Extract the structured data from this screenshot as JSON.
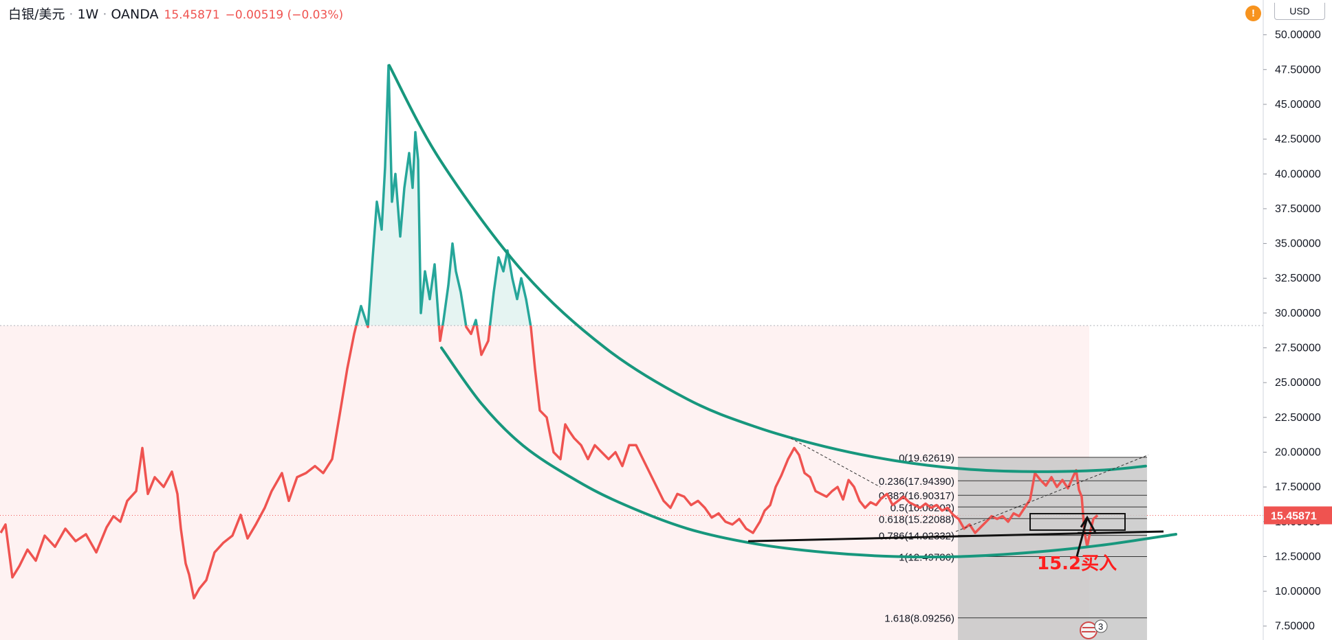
{
  "header": {
    "symbol": "白银/美元",
    "interval": "1W",
    "source": "OANDA",
    "price": "15.45871",
    "change": "−0.00519 (−0.03%)"
  },
  "axis": {
    "currency": "USD",
    "current_price_label": "15.45871"
  },
  "colors": {
    "up_line": "#26a69a",
    "down_line": "#ef5350",
    "channel": "#17977d",
    "fib_zone": "#c8c8c8",
    "price_tag": "#ef5350"
  },
  "annotation": {
    "buy_text": "15.2买入",
    "badge": "3"
  },
  "chart_data": {
    "type": "line",
    "ylim": [
      6.5,
      52.5
    ],
    "y_ticks": [
      "7.50000",
      "10.00000",
      "12.50000",
      "15.00000",
      "17.50000",
      "20.00000",
      "22.50000",
      "25.00000",
      "27.50000",
      "30.00000",
      "32.50000",
      "35.00000",
      "37.50000",
      "40.00000",
      "42.50000",
      "45.00000",
      "47.50000",
      "50.00000"
    ],
    "baseline": 29.1,
    "current_price": 15.45871,
    "price_series": [
      [
        1,
        14.2
      ],
      [
        8,
        14.8
      ],
      [
        18,
        11.0
      ],
      [
        28,
        11.8
      ],
      [
        40,
        13.0
      ],
      [
        52,
        12.2
      ],
      [
        65,
        14.0
      ],
      [
        80,
        13.2
      ],
      [
        95,
        14.5
      ],
      [
        110,
        13.6
      ],
      [
        125,
        14.1
      ],
      [
        140,
        12.8
      ],
      [
        155,
        14.6
      ],
      [
        165,
        15.4
      ],
      [
        175,
        15.0
      ],
      [
        185,
        16.5
      ],
      [
        198,
        17.2
      ],
      [
        207,
        20.3
      ],
      [
        215,
        17.0
      ],
      [
        225,
        18.2
      ],
      [
        238,
        17.5
      ],
      [
        250,
        18.6
      ],
      [
        258,
        17.0
      ],
      [
        263,
        14.5
      ],
      [
        270,
        12.0
      ],
      [
        275,
        11.2
      ],
      [
        282,
        9.5
      ],
      [
        290,
        10.2
      ],
      [
        300,
        10.8
      ],
      [
        312,
        12.8
      ],
      [
        325,
        13.5
      ],
      [
        338,
        14.0
      ],
      [
        350,
        15.5
      ],
      [
        360,
        13.8
      ],
      [
        372,
        14.8
      ],
      [
        385,
        16.0
      ],
      [
        395,
        17.2
      ],
      [
        410,
        18.5
      ],
      [
        420,
        16.5
      ],
      [
        432,
        18.2
      ],
      [
        445,
        18.5
      ],
      [
        458,
        19.0
      ],
      [
        470,
        18.5
      ],
      [
        483,
        19.5
      ],
      [
        495,
        23.0
      ],
      [
        505,
        26.0
      ],
      [
        515,
        28.5
      ],
      [
        525,
        30.5
      ],
      [
        535,
        29.0
      ],
      [
        542,
        34.0
      ],
      [
        548,
        38.0
      ],
      [
        555,
        36.0
      ],
      [
        560,
        40.5
      ],
      [
        565,
        47.8
      ],
      [
        570,
        38.0
      ],
      [
        575,
        40.0
      ],
      [
        582,
        35.5
      ],
      [
        588,
        39.0
      ],
      [
        595,
        41.5
      ],
      [
        600,
        39.0
      ],
      [
        604,
        43.0
      ],
      [
        608,
        41.0
      ],
      [
        612,
        30.0
      ],
      [
        618,
        33.0
      ],
      [
        625,
        31.0
      ],
      [
        632,
        33.5
      ],
      [
        640,
        28.0
      ],
      [
        645,
        29.5
      ],
      [
        652,
        32.0
      ],
      [
        658,
        35.0
      ],
      [
        663,
        33.0
      ],
      [
        670,
        31.5
      ],
      [
        678,
        29.0
      ],
      [
        685,
        28.5
      ],
      [
        692,
        29.5
      ],
      [
        700,
        27.0
      ],
      [
        710,
        28.0
      ],
      [
        718,
        31.5
      ],
      [
        725,
        34.0
      ],
      [
        732,
        33.0
      ],
      [
        738,
        34.5
      ],
      [
        745,
        32.5
      ],
      [
        752,
        31.0
      ],
      [
        758,
        32.5
      ],
      [
        765,
        31.0
      ],
      [
        772,
        29.0
      ],
      [
        778,
        26.0
      ],
      [
        785,
        23.0
      ],
      [
        795,
        22.5
      ],
      [
        805,
        20.0
      ],
      [
        815,
        19.5
      ],
      [
        822,
        22.0
      ],
      [
        828,
        21.5
      ],
      [
        835,
        21.0
      ],
      [
        845,
        20.5
      ],
      [
        855,
        19.5
      ],
      [
        865,
        20.5
      ],
      [
        875,
        20.0
      ],
      [
        885,
        19.5
      ],
      [
        895,
        20.0
      ],
      [
        905,
        19.0
      ],
      [
        915,
        20.5
      ],
      [
        925,
        20.5
      ],
      [
        935,
        19.5
      ],
      [
        945,
        18.5
      ],
      [
        955,
        17.5
      ],
      [
        965,
        16.5
      ],
      [
        975,
        16.0
      ],
      [
        985,
        17.0
      ],
      [
        995,
        16.8
      ],
      [
        1005,
        16.2
      ],
      [
        1015,
        16.5
      ],
      [
        1025,
        16.0
      ],
      [
        1035,
        15.3
      ],
      [
        1045,
        15.6
      ],
      [
        1055,
        15.0
      ],
      [
        1065,
        14.8
      ],
      [
        1075,
        15.2
      ],
      [
        1085,
        14.5
      ],
      [
        1095,
        14.2
      ],
      [
        1105,
        15.0
      ],
      [
        1112,
        15.8
      ],
      [
        1120,
        16.2
      ],
      [
        1128,
        17.5
      ],
      [
        1136,
        18.3
      ],
      [
        1146,
        19.5
      ],
      [
        1155,
        20.3
      ],
      [
        1162,
        19.8
      ],
      [
        1170,
        18.5
      ],
      [
        1178,
        18.2
      ],
      [
        1186,
        17.2
      ],
      [
        1194,
        17.0
      ],
      [
        1202,
        16.8
      ],
      [
        1210,
        17.2
      ],
      [
        1218,
        17.5
      ],
      [
        1226,
        16.6
      ],
      [
        1234,
        18.0
      ],
      [
        1242,
        17.5
      ],
      [
        1250,
        16.5
      ],
      [
        1258,
        16.0
      ],
      [
        1266,
        16.4
      ],
      [
        1274,
        16.2
      ],
      [
        1282,
        16.7
      ],
      [
        1290,
        17.0
      ],
      [
        1298,
        16.2
      ],
      [
        1306,
        16.5
      ],
      [
        1314,
        16.8
      ],
      [
        1322,
        16.4
      ],
      [
        1330,
        16.2
      ],
      [
        1338,
        16.0
      ],
      [
        1346,
        16.3
      ],
      [
        1354,
        16.0
      ],
      [
        1362,
        16.2
      ],
      [
        1370,
        15.8
      ],
      [
        1378,
        16.0
      ],
      [
        1386,
        15.5
      ],
      [
        1394,
        15.2
      ],
      [
        1402,
        14.5
      ],
      [
        1410,
        14.8
      ],
      [
        1418,
        14.2
      ],
      [
        1426,
        14.6
      ],
      [
        1434,
        15.0
      ],
      [
        1442,
        15.4
      ],
      [
        1450,
        15.2
      ],
      [
        1458,
        15.4
      ],
      [
        1466,
        15.0
      ],
      [
        1474,
        15.6
      ],
      [
        1482,
        15.4
      ],
      [
        1490,
        16.0
      ],
      [
        1498,
        16.6
      ],
      [
        1505,
        18.5
      ],
      [
        1513,
        18.0
      ],
      [
        1521,
        17.6
      ],
      [
        1529,
        18.2
      ],
      [
        1537,
        17.5
      ],
      [
        1545,
        18.0
      ],
      [
        1553,
        17.4
      ],
      [
        1561,
        18.3
      ],
      [
        1565,
        18.7
      ],
      [
        1569,
        17.3
      ],
      [
        1573,
        16.8
      ],
      [
        1577,
        14.3
      ],
      [
        1581,
        13.2
      ],
      [
        1585,
        14.2
      ],
      [
        1590,
        15.2
      ],
      [
        1596,
        15.46
      ]
    ],
    "upper_curve": [
      [
        566,
        47.8
      ],
      [
        640,
        41.0
      ],
      [
        760,
        33.0
      ],
      [
        880,
        27.5
      ],
      [
        1000,
        23.8
      ],
      [
        1100,
        21.8
      ],
      [
        1200,
        20.4
      ],
      [
        1300,
        19.4
      ],
      [
        1400,
        18.8
      ],
      [
        1500,
        18.6
      ],
      [
        1600,
        18.7
      ],
      [
        1666,
        19.0
      ]
    ],
    "lower_curve": [
      [
        642,
        27.5
      ],
      [
        700,
        23.5
      ],
      [
        760,
        20.5
      ],
      [
        830,
        18.2
      ],
      [
        900,
        16.4
      ],
      [
        1000,
        14.5
      ],
      [
        1100,
        13.4
      ],
      [
        1200,
        12.8
      ],
      [
        1300,
        12.5
      ],
      [
        1400,
        12.5
      ],
      [
        1500,
        12.8
      ],
      [
        1600,
        13.3
      ],
      [
        1710,
        14.1
      ]
    ],
    "support_line": [
      [
        1088,
        13.6
      ],
      [
        1692,
        14.3
      ]
    ],
    "box": {
      "x1": 1498,
      "x2": 1636,
      "y1": 14.4,
      "y2": 15.58
    },
    "arrow": [
      [
        1566,
        12.5
      ],
      [
        1581,
        15.3
      ]
    ],
    "dotted_trend_1": [
      [
        1150,
        21.0
      ],
      [
        1280,
        17.5
      ]
    ],
    "dotted_trend_2": [
      [
        1390,
        14.3
      ],
      [
        1670,
        19.8
      ]
    ],
    "fib": {
      "x1": 1393,
      "x2": 1668,
      "y_top": 19.62619,
      "y_bottom": 6.5,
      "label_x": 1388,
      "levels": [
        {
          "value": 19.62619,
          "label": "0(19.62619)"
        },
        {
          "value": 17.9439,
          "label": "0.236(17.94390)"
        },
        {
          "value": 16.90317,
          "label": "0.382(16.90317)"
        },
        {
          "value": 16.06202,
          "label": "0.5(16.06202)"
        },
        {
          "value": 15.22088,
          "label": "0.618(15.22088)"
        },
        {
          "value": 14.02332,
          "label": "0.786(14.02332)"
        },
        {
          "value": 12.49786,
          "label": "1(12.49786)"
        },
        {
          "value": 8.09256,
          "label": "1.618(8.09256)"
        }
      ]
    }
  }
}
